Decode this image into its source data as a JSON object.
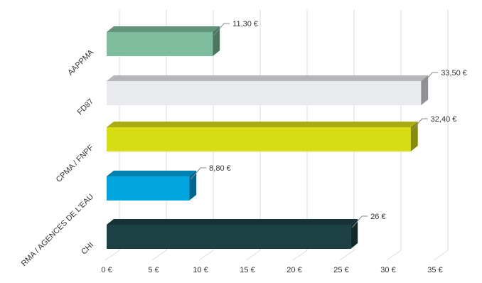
{
  "chart_data": {
    "type": "bar",
    "orientation": "horizontal",
    "style": "3d",
    "title": "",
    "xlabel": "",
    "ylabel": "",
    "xlim": [
      0,
      35
    ],
    "grid": true,
    "legend": "none",
    "x_ticks": [
      "0 €",
      "5 €",
      "10 €",
      "15 €",
      "20 €",
      "25 €",
      "30 €",
      "35 €"
    ],
    "categories": [
      "AAPPMA",
      "FD87",
      "CPMA / FNPF",
      "RMA / AGENCES DE L'EAU",
      "CHI"
    ],
    "values": [
      11.3,
      33.5,
      32.4,
      8.8,
      26
    ],
    "data_labels": [
      "11,30 €",
      "33,50 €",
      "32,40 €",
      "8,80 €",
      "26 €"
    ],
    "colors": [
      "#7dbd9e",
      "#e8eaee",
      "#d8dd13",
      "#00a5e0",
      "#1d4044"
    ]
  }
}
